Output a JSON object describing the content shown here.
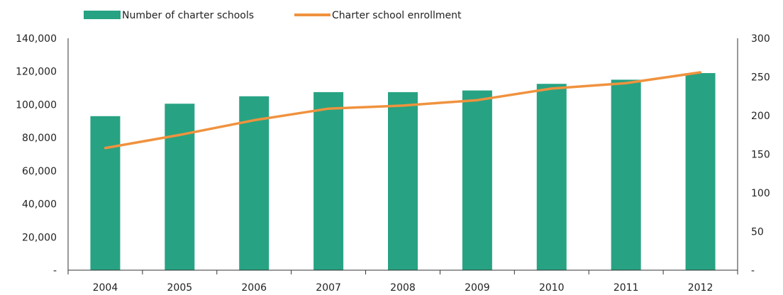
{
  "colors": {
    "bar": "#27a383",
    "line": "#f0923e",
    "axis": "#333333",
    "text": "#222222"
  },
  "legend": {
    "bar_label": "Number of charter schools",
    "line_label": "Charter school enrollment"
  },
  "chart_data": {
    "type": "bar",
    "categories": [
      "2004",
      "2005",
      "2006",
      "2007",
      "2008",
      "2009",
      "2010",
      "2011",
      "2012"
    ],
    "series": [
      {
        "name": "Number of charter schools",
        "type": "bar",
        "axis": "left",
        "values": [
          93000,
          100500,
          105000,
          107500,
          107500,
          108500,
          112500,
          115000,
          119000
        ]
      },
      {
        "name": "Charter school enrollment",
        "type": "line",
        "axis": "right",
        "values": [
          158,
          175,
          194,
          209,
          213,
          220,
          235,
          242,
          256
        ]
      }
    ],
    "left_axis": {
      "ylim": [
        0,
        140000
      ],
      "ticks": [
        0,
        20000,
        40000,
        60000,
        80000,
        100000,
        120000,
        140000
      ],
      "tick_labels": [
        "-",
        "20,000",
        "40,000",
        "60,000",
        "80,000",
        "100,000",
        "120,000",
        "140,000"
      ]
    },
    "right_axis": {
      "ylim": [
        0,
        300
      ],
      "ticks": [
        0,
        50,
        100,
        150,
        200,
        250,
        300
      ],
      "tick_labels": [
        "-",
        "50",
        "100",
        "150",
        "200",
        "250",
        "300"
      ]
    },
    "grid": false,
    "legend_position": "top-left"
  }
}
